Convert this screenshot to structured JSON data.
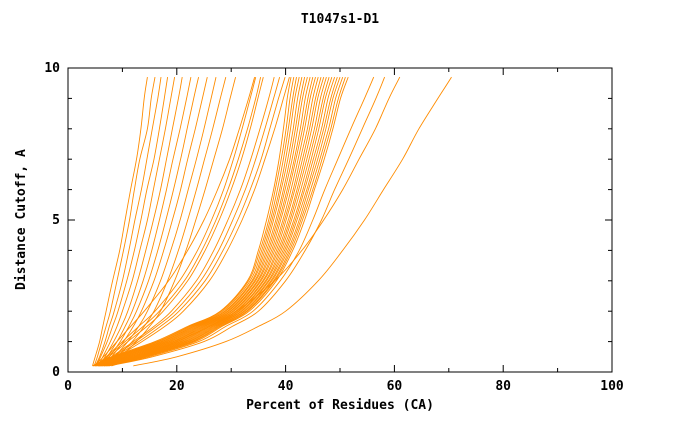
{
  "chart_data": {
    "type": "line",
    "title": "T1047s1-D1",
    "xlabel": "Percent of Residues (CA)",
    "ylabel": "Distance Cutoff, A",
    "xlim": [
      0,
      100
    ],
    "ylim": [
      0,
      10
    ],
    "x_major_ticks": [
      0,
      20,
      40,
      60,
      80,
      100
    ],
    "x_minor_ticks": [
      10,
      30,
      50,
      70,
      90
    ],
    "y_major_ticks": [
      0,
      5,
      10
    ],
    "y_minor_ticks": [
      1,
      2,
      3,
      4,
      6,
      7,
      8,
      9
    ],
    "grid": false,
    "legend": "none",
    "line_color": "#ff8c00",
    "axis_color": "#000000",
    "y_levels": [
      0.2,
      0.5,
      1,
      1.5,
      2,
      3,
      4,
      5,
      6,
      7,
      8,
      9,
      9.7
    ],
    "series": [
      [
        4.5,
        5.0,
        5.8,
        6.4,
        7.0,
        8.2,
        9.5,
        10.5,
        11.5,
        12.6,
        13.4,
        14.0,
        14.6
      ],
      [
        4.8,
        5.4,
        6.2,
        7.0,
        7.8,
        9.0,
        10.2,
        11.3,
        12.2,
        13.2,
        14.6,
        15.3,
        16.0
      ],
      [
        5.0,
        5.8,
        6.8,
        7.6,
        8.5,
        10.0,
        11.2,
        12.3,
        13.5,
        14.5,
        15.5,
        16.5,
        17.1
      ],
      [
        5.2,
        6.0,
        7.2,
        8.2,
        9.2,
        10.8,
        12.2,
        13.4,
        14.5,
        15.8,
        16.8,
        17.7,
        18.3
      ],
      [
        5.5,
        6.4,
        7.8,
        9.0,
        10.0,
        11.8,
        13.2,
        14.6,
        15.7,
        16.8,
        17.9,
        18.9,
        19.6
      ],
      [
        5.8,
        6.8,
        8.4,
        9.8,
        11.0,
        12.8,
        14.3,
        15.7,
        17.0,
        18.1,
        19.2,
        20.3,
        21.0
      ],
      [
        6.0,
        7.2,
        9.0,
        10.5,
        11.8,
        13.8,
        15.4,
        16.8,
        18.1,
        19.3,
        20.6,
        21.8,
        22.6
      ],
      [
        6.2,
        7.6,
        9.6,
        11.2,
        12.6,
        14.8,
        16.5,
        18.0,
        19.4,
        20.7,
        21.9,
        23.1,
        24.0
      ],
      [
        6.5,
        8.0,
        10.2,
        12.0,
        13.5,
        15.8,
        17.6,
        19.2,
        20.7,
        22.0,
        23.4,
        24.7,
        25.6
      ],
      [
        6.8,
        8.5,
        11.0,
        13.0,
        14.6,
        17.0,
        18.9,
        20.6,
        22.1,
        23.6,
        25.0,
        26.3,
        27.2
      ],
      [
        7.0,
        9.0,
        11.8,
        14.0,
        15.8,
        18.3,
        20.3,
        22.0,
        23.6,
        25.1,
        26.6,
        28.0,
        29.0
      ],
      [
        7.2,
        9.5,
        12.6,
        15.0,
        17.0,
        19.6,
        21.7,
        23.5,
        25.2,
        26.8,
        28.4,
        29.8,
        30.8
      ],
      [
        4.8,
        6.5,
        9.0,
        11.5,
        14.0,
        18.5,
        22.0,
        25.0,
        27.5,
        29.7,
        31.5,
        33.2,
        34.3
      ],
      [
        5.0,
        7.0,
        10.0,
        13.0,
        16.0,
        20.5,
        23.8,
        26.4,
        28.6,
        30.4,
        32.0,
        33.5,
        34.5
      ],
      [
        5.3,
        7.5,
        11.0,
        14.5,
        17.5,
        22.0,
        25.2,
        27.8,
        30.0,
        31.9,
        33.5,
        34.9,
        35.9
      ],
      [
        5.6,
        8.0,
        12.0,
        15.8,
        19.0,
        23.6,
        26.8,
        29.4,
        31.7,
        33.6,
        35.3,
        36.9,
        37.9
      ],
      [
        6.0,
        8.6,
        13.0,
        17.0,
        20.4,
        25.2,
        28.5,
        31.2,
        33.5,
        35.5,
        37.1,
        38.7,
        39.9
      ],
      [
        5.1,
        7.2,
        10.5,
        13.8,
        16.8,
        21.4,
        24.6,
        27.2,
        29.4,
        31.3,
        33.0,
        34.5,
        35.4
      ],
      [
        5.9,
        8.3,
        12.4,
        16.3,
        19.7,
        24.4,
        27.7,
        30.3,
        32.6,
        34.5,
        36.2,
        37.8,
        38.9
      ],
      [
        6.2,
        9.0,
        13.6,
        17.8,
        21.2,
        26.0,
        29.3,
        32.0,
        34.3,
        36.2,
        38.0,
        39.6,
        40.7
      ],
      [
        4.5,
        8.0,
        16.0,
        22.0,
        28.0,
        33.0,
        35.0,
        36.5,
        37.8,
        38.8,
        39.6,
        40.3,
        41.0
      ],
      [
        4.6,
        8.4,
        16.4,
        22.3,
        28.2,
        33.2,
        35.3,
        36.9,
        38.1,
        39.2,
        40.1,
        40.8,
        41.5
      ],
      [
        4.7,
        8.6,
        16.7,
        22.6,
        28.5,
        33.5,
        35.6,
        37.2,
        38.5,
        39.6,
        40.5,
        41.3,
        42.0
      ],
      [
        4.9,
        8.9,
        17.1,
        22.9,
        28.8,
        33.8,
        35.9,
        37.5,
        38.9,
        40.0,
        40.9,
        41.7,
        42.5
      ],
      [
        5.0,
        9.2,
        17.4,
        23.2,
        29.0,
        34.0,
        36.2,
        37.8,
        39.2,
        40.4,
        41.4,
        42.2,
        43.0
      ],
      [
        5.1,
        9.5,
        17.8,
        23.5,
        29.3,
        34.3,
        36.5,
        38.2,
        39.6,
        40.8,
        41.8,
        42.7,
        43.5
      ],
      [
        5.2,
        9.8,
        18.1,
        23.8,
        29.5,
        34.5,
        36.8,
        38.5,
        39.9,
        41.2,
        42.2,
        43.1,
        44.0
      ],
      [
        5.3,
        10.1,
        18.5,
        24.1,
        29.8,
        34.8,
        37.1,
        38.8,
        40.3,
        41.6,
        42.7,
        43.6,
        44.5
      ],
      [
        5.5,
        10.4,
        18.8,
        24.4,
        30.0,
        35.0,
        37.4,
        39.1,
        40.6,
        41.9,
        43.1,
        44.1,
        45.0
      ],
      [
        5.6,
        10.7,
        19.2,
        24.7,
        30.3,
        35.3,
        37.7,
        39.5,
        41.0,
        42.3,
        43.5,
        44.5,
        45.5
      ],
      [
        5.7,
        11.0,
        19.5,
        25.0,
        30.5,
        35.5,
        38.0,
        39.8,
        41.4,
        42.7,
        44.0,
        45.0,
        46.0
      ],
      [
        5.8,
        11.3,
        19.9,
        25.3,
        30.8,
        35.8,
        38.3,
        40.1,
        41.7,
        43.1,
        44.4,
        45.5,
        46.5
      ],
      [
        6.0,
        11.6,
        20.2,
        25.6,
        31.0,
        36.0,
        38.6,
        40.5,
        42.1,
        43.5,
        44.8,
        45.9,
        47.0
      ],
      [
        6.1,
        11.9,
        20.6,
        25.9,
        31.3,
        36.3,
        38.9,
        40.8,
        42.4,
        43.9,
        45.3,
        46.4,
        47.5
      ],
      [
        6.2,
        12.2,
        20.9,
        26.2,
        31.5,
        36.5,
        39.2,
        41.1,
        42.8,
        44.3,
        45.7,
        46.9,
        48.0
      ],
      [
        6.3,
        12.5,
        21.3,
        26.5,
        31.8,
        36.8,
        39.5,
        41.5,
        43.2,
        44.7,
        46.1,
        47.3,
        48.5
      ],
      [
        6.5,
        12.8,
        21.6,
        26.8,
        32.0,
        37.0,
        39.8,
        41.8,
        43.5,
        45.1,
        46.6,
        47.8,
        49.0
      ],
      [
        6.6,
        13.1,
        22.0,
        27.1,
        32.3,
        37.3,
        40.1,
        42.1,
        43.9,
        45.5,
        47.0,
        48.3,
        49.5
      ],
      [
        6.7,
        13.4,
        22.3,
        27.4,
        32.5,
        37.5,
        40.4,
        42.5,
        44.2,
        45.9,
        47.4,
        48.7,
        50.0
      ],
      [
        6.8,
        13.7,
        22.7,
        27.7,
        32.8,
        37.8,
        40.7,
        42.8,
        44.6,
        46.3,
        47.9,
        49.2,
        50.5
      ],
      [
        7.0,
        14.0,
        23.0,
        28.0,
        33.0,
        38.0,
        41.0,
        43.1,
        45.0,
        46.7,
        48.3,
        49.7,
        51.0
      ],
      [
        7.1,
        14.3,
        23.4,
        28.3,
        33.3,
        38.3,
        41.3,
        43.5,
        45.3,
        47.1,
        48.7,
        50.1,
        51.5
      ],
      [
        7.3,
        14.8,
        24.0,
        29.0,
        34.0,
        39.0,
        42.5,
        45.0,
        47.2,
        49.6,
        52.0,
        54.5,
        56.2
      ],
      [
        7.5,
        15.5,
        25.0,
        30.2,
        35.0,
        40.0,
        43.6,
        46.6,
        49.0,
        51.6,
        54.1,
        56.6,
        58.2
      ],
      [
        8.0,
        13.0,
        20.0,
        26.0,
        31.0,
        38.0,
        43.0,
        47.0,
        50.5,
        53.5,
        56.5,
        59.0,
        61.0
      ],
      [
        12.0,
        20.0,
        29.0,
        35.0,
        40.0,
        46.0,
        50.5,
        54.5,
        58.0,
        61.5,
        64.5,
        68.0,
        70.5
      ]
    ]
  }
}
